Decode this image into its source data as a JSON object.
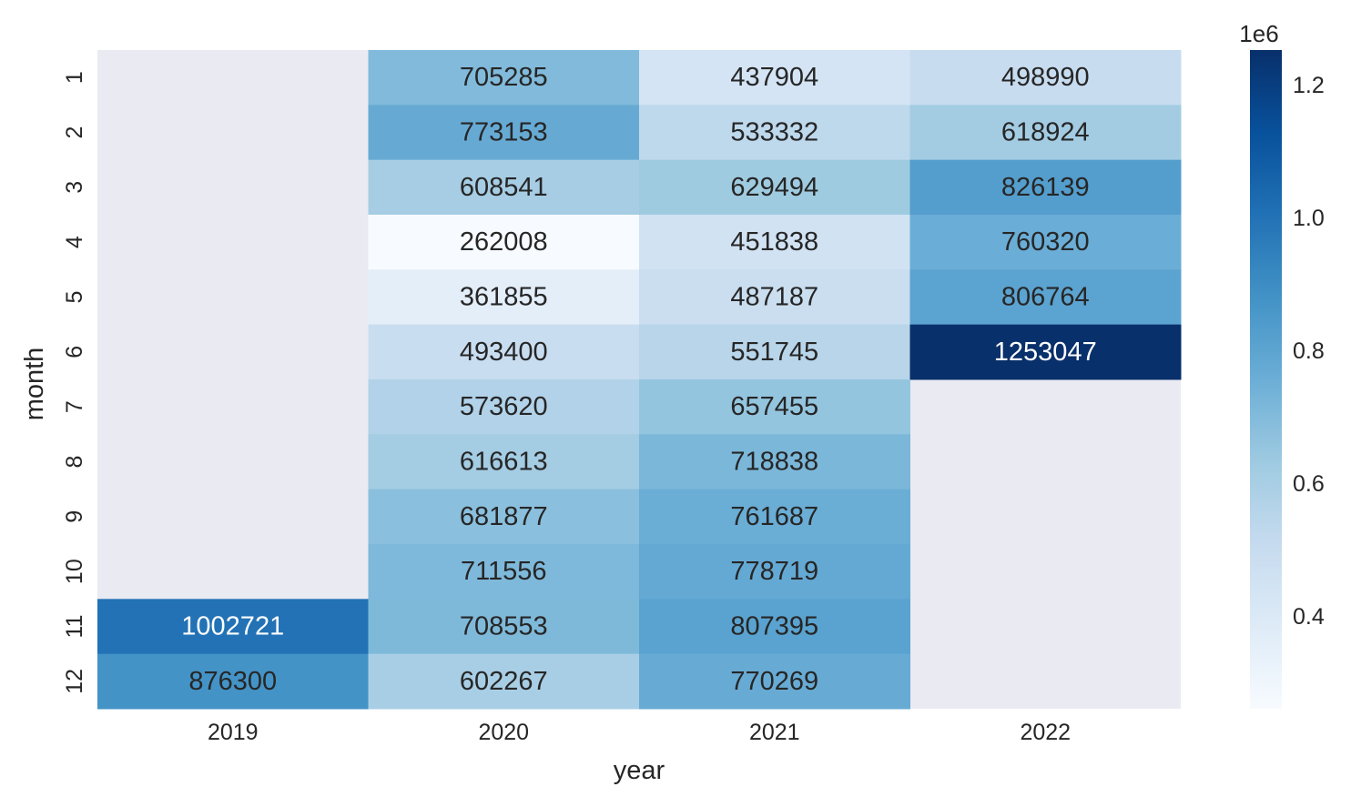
{
  "chart_data": {
    "type": "heatmap",
    "title": "",
    "xlabel": "year",
    "ylabel": "month",
    "x_categories": [
      "2019",
      "2020",
      "2021",
      "2022"
    ],
    "y_categories": [
      "1",
      "2",
      "3",
      "4",
      "5",
      "6",
      "7",
      "8",
      "9",
      "10",
      "11",
      "12"
    ],
    "values": [
      [
        null,
        705285,
        437904,
        498990
      ],
      [
        null,
        773153,
        533332,
        618924
      ],
      [
        null,
        608541,
        629494,
        826139
      ],
      [
        null,
        262008,
        451838,
        760320
      ],
      [
        null,
        361855,
        487187,
        806764
      ],
      [
        null,
        493400,
        551745,
        1253047
      ],
      [
        null,
        573620,
        657455,
        null
      ],
      [
        null,
        616613,
        718838,
        null
      ],
      [
        null,
        681877,
        761687,
        null
      ],
      [
        null,
        711556,
        778719,
        null
      ],
      [
        1002721,
        708553,
        807395,
        null
      ],
      [
        876300,
        602267,
        770269,
        null
      ]
    ],
    "missing_color": "#eaeaf2",
    "colormap": "Blues",
    "value_range": [
      262008,
      1253047
    ],
    "colorbar": {
      "ticks": [
        0.4,
        0.6,
        0.8,
        1.0,
        1.2
      ],
      "tick_labels": [
        "0.4",
        "0.6",
        "0.8",
        "1.0",
        "1.2"
      ],
      "multiplier_label": "1e6",
      "scale": 1000000
    },
    "grid": false
  }
}
